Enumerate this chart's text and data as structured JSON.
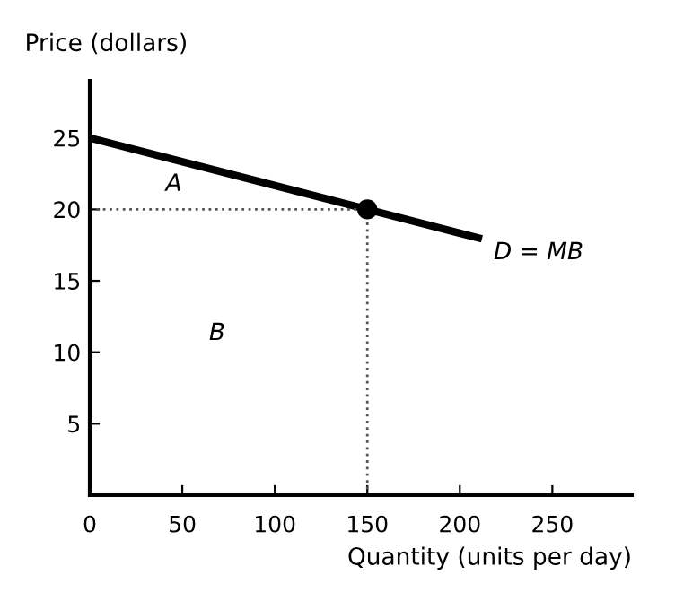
{
  "chart_data": {
    "type": "line",
    "xlabel": "Quantity (units per day)",
    "ylabel": "Price (dollars)",
    "xlim": [
      0,
      293
    ],
    "ylim": [
      0,
      29
    ],
    "xticks": [
      0,
      50,
      100,
      150,
      200,
      250
    ],
    "yticks": [
      5,
      10,
      15,
      20,
      25
    ],
    "grid": false,
    "legend": false,
    "series": [
      {
        "x": [
          0,
          210
        ],
        "values": [
          25,
          18
        ],
        "color": "#000000",
        "line_style": "solid",
        "marker": "none"
      },
      {
        "x": [
          150
        ],
        "values": [
          20
        ],
        "color": "#000000",
        "type": "scatter",
        "marker": "circle"
      },
      {
        "x": [
          0,
          150
        ],
        "values": [
          20,
          20
        ],
        "color": "#555555",
        "line_style": "dotted",
        "marker": "none"
      },
      {
        "x": [
          150,
          150
        ],
        "values": [
          20,
          0
        ],
        "color": "#555555",
        "line_style": "dotted",
        "marker": "none"
      }
    ],
    "annotations": [
      "A",
      "B",
      "D = MB"
    ]
  }
}
